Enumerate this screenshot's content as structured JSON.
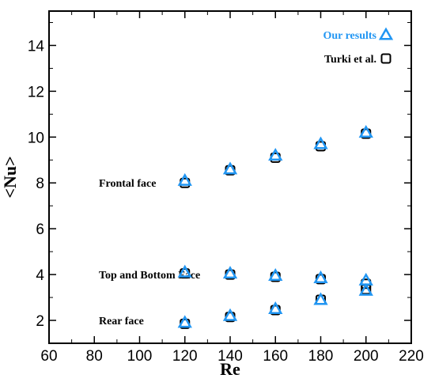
{
  "chart_data": {
    "type": "scatter",
    "title": "",
    "xlabel": "Re",
    "ylabel": "<Nu>",
    "xlim": [
      60,
      220
    ],
    "ylim": [
      1,
      15.5
    ],
    "xticks": [
      60,
      80,
      100,
      120,
      140,
      160,
      180,
      200,
      220
    ],
    "yticks": [
      2,
      4,
      6,
      8,
      10,
      12,
      14
    ],
    "grid": false,
    "legend_position": "top-right",
    "series": [
      {
        "name": "Our results",
        "marker": "triangle",
        "color": "#2196F3",
        "groups": [
          {
            "x": [
              120,
              140,
              160,
              180,
              200
            ],
            "y": [
              8.1,
              8.6,
              9.2,
              9.7,
              10.2
            ]
          },
          {
            "x": [
              120,
              140,
              160,
              180,
              200
            ],
            "y": [
              4.1,
              4.05,
              3.95,
              3.85,
              3.75
            ]
          },
          {
            "x": [
              120,
              140,
              160,
              180,
              200
            ],
            "y": [
              1.9,
              2.2,
              2.5,
              2.9,
              3.3
            ]
          }
        ]
      },
      {
        "name": "Turki et al.",
        "marker": "square",
        "color": "#000000",
        "groups": [
          {
            "x": [
              120,
              140,
              160,
              180,
              200
            ],
            "y": [
              8.0,
              8.55,
              9.1,
              9.6,
              10.15
            ]
          },
          {
            "x": [
              120,
              140,
              160,
              180,
              200
            ],
            "y": [
              4.05,
              4.0,
              3.9,
              3.8,
              3.6
            ]
          },
          {
            "x": [
              120,
              140,
              160,
              180,
              200
            ],
            "y": [
              1.85,
              2.15,
              2.45,
              2.9,
              3.35
            ]
          }
        ]
      }
    ],
    "annotations": [
      {
        "text": "Frontal face",
        "x": 82,
        "y": 8.0
      },
      {
        "text": "Top and Bottom Face",
        "x": 82,
        "y": 4.0
      },
      {
        "text": "Rear face",
        "x": 82,
        "y": 2.0
      }
    ]
  }
}
